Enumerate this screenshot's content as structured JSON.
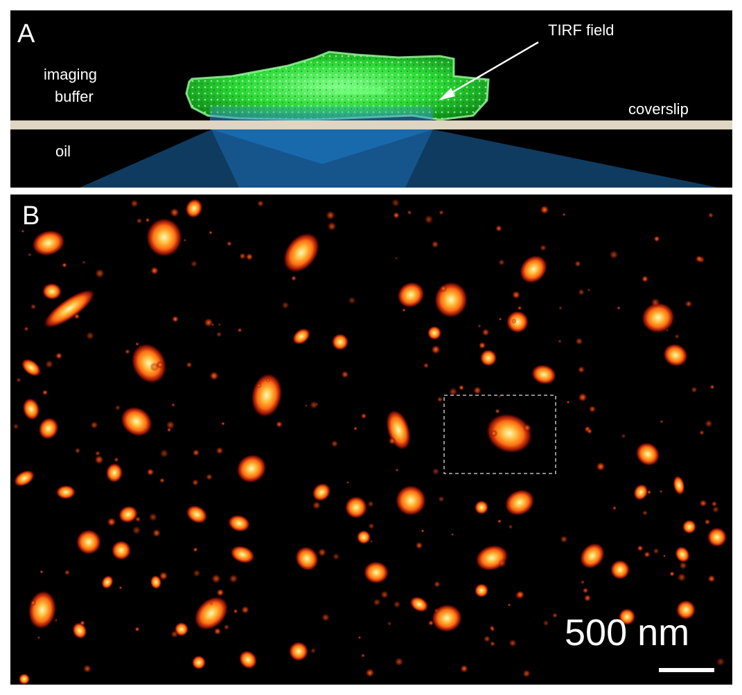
{
  "panel_a": {
    "label": "A",
    "imaging_buffer_line1": "imaging",
    "imaging_buffer_line2": "buffer",
    "oil": "oil",
    "coverslip": "coverslip",
    "tirf_field": "TIRF field",
    "colors": {
      "background": "#000000",
      "cell": "#2be23a",
      "coverslip": "#ded6c2",
      "beam": "#1a6aa8"
    }
  },
  "panel_b": {
    "label": "B",
    "scale_bar_label": "500 nm",
    "colors": {
      "background": "#000000",
      "cluster_core": "#fff6b0",
      "cluster_mid": "#ff8a1c",
      "cluster_edge": "#c81e0c"
    }
  }
}
